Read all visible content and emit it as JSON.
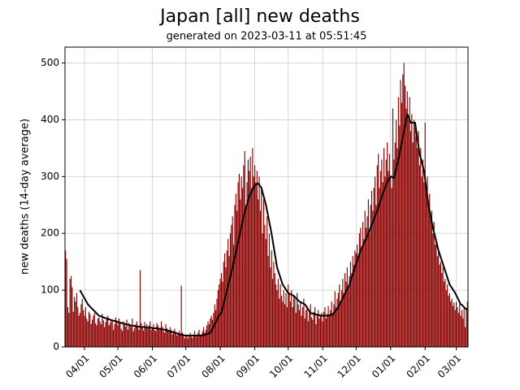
{
  "chart_data": {
    "type": "bar",
    "title": "Japan [all] new deaths",
    "subtitle": "generated on 2023-03-11 at 05:51:45",
    "y_label": "new deaths (14-day average)",
    "grid": true,
    "ylim": [
      0,
      528
    ],
    "yticks": [
      0,
      100,
      200,
      300,
      400,
      500
    ],
    "categories": [
      null,
      null,
      null,
      null,
      null,
      null,
      null,
      null,
      null,
      null,
      null,
      null,
      null,
      null,
      null,
      null,
      null,
      "04/01",
      null,
      null,
      null,
      null,
      null,
      null,
      null,
      null,
      null,
      null,
      null,
      null,
      null,
      null,
      null,
      null,
      null,
      null,
      null,
      null,
      null,
      null,
      null,
      null,
      null,
      null,
      null,
      null,
      null,
      "05/01",
      null,
      null,
      null,
      null,
      null,
      null,
      null,
      null,
      null,
      null,
      null,
      null,
      null,
      null,
      null,
      null,
      null,
      null,
      null,
      null,
      null,
      null,
      null,
      null,
      null,
      null,
      null,
      null,
      null,
      null,
      "06/01",
      null,
      null,
      null,
      null,
      null,
      null,
      null,
      null,
      null,
      null,
      null,
      null,
      null,
      null,
      null,
      null,
      null,
      null,
      null,
      null,
      null,
      null,
      null,
      null,
      null,
      null,
      null,
      null,
      null,
      "07/01",
      null,
      null,
      null,
      null,
      null,
      null,
      null,
      null,
      null,
      null,
      null,
      null,
      null,
      null,
      null,
      null,
      null,
      null,
      null,
      null,
      null,
      null,
      null,
      null,
      null,
      null,
      null,
      null,
      null,
      null,
      "08/01",
      null,
      null,
      null,
      null,
      null,
      null,
      null,
      null,
      null,
      null,
      null,
      null,
      null,
      null,
      null,
      null,
      null,
      null,
      null,
      null,
      null,
      null,
      null,
      null,
      null,
      null,
      null,
      null,
      null,
      null,
      "09/01",
      null,
      null,
      null,
      null,
      null,
      null,
      null,
      null,
      null,
      null,
      null,
      null,
      null,
      null,
      null,
      null,
      null,
      null,
      null,
      null,
      null,
      null,
      null,
      null,
      null,
      null,
      null,
      null,
      null,
      "10/01",
      null,
      null,
      null,
      null,
      null,
      null,
      null,
      null,
      null,
      null,
      null,
      null,
      null,
      null,
      null,
      null,
      null,
      null,
      null,
      null,
      null,
      null,
      null,
      null,
      null,
      null,
      null,
      null,
      null,
      null,
      "11/01",
      null,
      null,
      null,
      null,
      null,
      null,
      null,
      null,
      null,
      null,
      null,
      null,
      null,
      null,
      null,
      null,
      null,
      null,
      null,
      null,
      null,
      null,
      null,
      null,
      null,
      null,
      null,
      null,
      null,
      "12/01",
      null,
      null,
      null,
      null,
      null,
      null,
      null,
      null,
      null,
      null,
      null,
      null,
      null,
      null,
      null,
      null,
      null,
      null,
      null,
      null,
      null,
      null,
      null,
      null,
      null,
      null,
      null,
      null,
      null,
      null,
      "01/01",
      null,
      null,
      null,
      null,
      null,
      null,
      null,
      null,
      null,
      null,
      null,
      null,
      null,
      null,
      null,
      null,
      null,
      null,
      null,
      null,
      null,
      null,
      null,
      null,
      null,
      null,
      null,
      null,
      null,
      null,
      "02/01",
      null,
      null,
      null,
      null,
      null,
      null,
      null,
      null,
      null,
      null,
      null,
      null,
      null,
      null,
      null,
      null,
      null,
      null,
      null,
      null,
      null,
      null,
      null,
      null,
      null,
      null,
      null,
      "03/01",
      null,
      null,
      null,
      null,
      null,
      null,
      null,
      null,
      null,
      null
    ],
    "series": [
      {
        "type": "bar",
        "color": "#8b0000",
        "values": [
          170,
          155,
          70,
          60,
          120,
          125,
          105,
          62,
          88,
          80,
          95,
          70,
          55,
          60,
          75,
          85,
          65,
          55,
          70,
          50,
          45,
          62,
          58,
          40,
          48,
          55,
          60,
          42,
          38,
          50,
          52,
          45,
          40,
          58,
          47,
          35,
          44,
          50,
          55,
          38,
          42,
          48,
          45,
          30,
          40,
          52,
          46,
          38,
          50,
          44,
          32,
          28,
          45,
          40,
          36,
          48,
          30,
          42,
          38,
          35,
          50,
          28,
          33,
          40,
          45,
          37,
          30,
          135,
          42,
          35,
          29,
          44,
          36,
          40,
          32,
          38,
          45,
          30,
          35,
          40,
          30,
          28,
          42,
          38,
          32,
          30,
          45,
          36,
          28,
          25,
          40,
          33,
          30,
          26,
          35,
          30,
          22,
          28,
          32,
          25,
          20,
          24,
          28,
          22,
          108,
          25,
          20,
          15,
          18,
          22,
          15,
          20,
          25,
          18,
          16,
          22,
          28,
          20,
          18,
          25,
          30,
          22,
          20,
          28,
          35,
          25,
          30,
          38,
          45,
          40,
          50,
          55,
          48,
          60,
          75,
          65,
          85,
          100,
          110,
          120,
          130,
          115,
          150,
          165,
          140,
          170,
          190,
          160,
          200,
          215,
          230,
          180,
          250,
          270,
          240,
          290,
          305,
          260,
          300,
          280,
          320,
          345,
          250,
          290,
          330,
          310,
          335,
          280,
          350,
          300,
          320,
          290,
          310,
          260,
          300,
          240,
          280,
          200,
          260,
          215,
          190,
          230,
          160,
          200,
          140,
          170,
          120,
          150,
          130,
          110,
          100,
          120,
          85,
          110,
          90,
          80,
          100,
          75,
          95,
          70,
          110,
          95,
          80,
          100,
          70,
          90,
          85,
          60,
          95,
          75,
          65,
          80,
          55,
          70,
          85,
          50,
          65,
          72,
          45,
          60,
          75,
          52,
          48,
          62,
          70,
          40,
          58,
          65,
          50,
          55,
          60,
          45,
          62,
          70,
          50,
          58,
          72,
          55,
          65,
          80,
          60,
          75,
          98,
          70,
          85,
          95,
          110,
          80,
          100,
          120,
          95,
          130,
          115,
          140,
          105,
          125,
          150,
          130,
          160,
          145,
          170,
          165,
          180,
          155,
          200,
          210,
          175,
          220,
          190,
          240,
          210,
          230,
          260,
          200,
          250,
          275,
          240,
          280,
          300,
          250,
          320,
          340,
          280,
          310,
          330,
          290,
          350,
          300,
          330,
          360,
          310,
          340,
          300,
          280,
          420,
          330,
          360,
          400,
          350,
          440,
          390,
          470,
          430,
          480,
          500,
          460,
          420,
          450,
          400,
          440,
          380,
          410,
          360,
          400,
          390,
          370,
          350,
          380,
          320,
          350,
          300,
          330,
          290,
          395,
          280,
          300,
          250,
          270,
          230,
          240,
          200,
          220,
          180,
          190,
          160,
          170,
          145,
          150,
          130,
          140,
          115,
          120,
          100,
          110,
          90,
          95,
          80,
          85,
          72,
          78,
          65,
          80,
          70,
          60,
          75,
          55,
          65,
          50,
          70,
          35,
          68,
          80
        ]
      },
      {
        "type": "line",
        "color": "#000000",
        "values": [
          null,
          null,
          null,
          null,
          null,
          null,
          null,
          null,
          null,
          null,
          null,
          null,
          null,
          100,
          96,
          93,
          89,
          86,
          82,
          79,
          75,
          73,
          71,
          69,
          67,
          65,
          63,
          61,
          59,
          57,
          55,
          54,
          54,
          53,
          52,
          51,
          51,
          50,
          49,
          49,
          48,
          47,
          47,
          46,
          46,
          45,
          45,
          44,
          43,
          43,
          42,
          42,
          41,
          41,
          40,
          40,
          39,
          39,
          38,
          38,
          37,
          37,
          37,
          36,
          36,
          36,
          36,
          35,
          35,
          35,
          35,
          35,
          35,
          34,
          34,
          34,
          34,
          34,
          33,
          33,
          33,
          33,
          33,
          32,
          32,
          32,
          31,
          31,
          31,
          30,
          30,
          29,
          29,
          28,
          27,
          27,
          26,
          26,
          25,
          25,
          24,
          23,
          23,
          22,
          22,
          21,
          21,
          20,
          20,
          20,
          20,
          20,
          20,
          20,
          20,
          20,
          20,
          20,
          20,
          20,
          20,
          20,
          20,
          21,
          21,
          22,
          22,
          23,
          23,
          24,
          25,
          28,
          32,
          36,
          40,
          44,
          48,
          52,
          56,
          58,
          60,
          68,
          76,
          84,
          92,
          100,
          108,
          116,
          124,
          132,
          140,
          149,
          158,
          167,
          176,
          185,
          194,
          203,
          212,
          221,
          230,
          237,
          244,
          251,
          258,
          265,
          269,
          273,
          277,
          281,
          285,
          286,
          287,
          288,
          285,
          283,
          280,
          272,
          265,
          258,
          250,
          240,
          230,
          220,
          210,
          200,
          188,
          176,
          164,
          152,
          140,
          134,
          128,
          122,
          116,
          110,
          107,
          104,
          101,
          98,
          95,
          94,
          93,
          92,
          91,
          90,
          88,
          86,
          84,
          82,
          80,
          79,
          78,
          77,
          76,
          75,
          72,
          69,
          66,
          63,
          60,
          59,
          59,
          58,
          58,
          57,
          57,
          56,
          56,
          55,
          55,
          55,
          55,
          55,
          55,
          55,
          55,
          56,
          56,
          57,
          57,
          60,
          62,
          65,
          67,
          70,
          74,
          78,
          82,
          86,
          90,
          94,
          98,
          102,
          106,
          110,
          116,
          122,
          128,
          134,
          140,
          146,
          152,
          158,
          164,
          170,
          174,
          178,
          182,
          186,
          190,
          195,
          200,
          205,
          210,
          215,
          220,
          225,
          230,
          235,
          240,
          246,
          252,
          258,
          264,
          270,
          275,
          280,
          285,
          290,
          295,
          297,
          300,
          300,
          298,
          297,
          305,
          314,
          322,
          331,
          340,
          350,
          360,
          370,
          380,
          390,
          400,
          410,
          405,
          400,
          395,
          395,
          395,
          395,
          395,
          381,
          367,
          354,
          340,
          333,
          325,
          318,
          310,
          295,
          280,
          265,
          250,
          240,
          230,
          220,
          210,
          202,
          194,
          186,
          178,
          170,
          164,
          158,
          152,
          146,
          140,
          134,
          128,
          122,
          116,
          110,
          107,
          104,
          101,
          98,
          95,
          91,
          87,
          83,
          79,
          75,
          74,
          72,
          70,
          68,
          67,
          65
        ]
      }
    ]
  }
}
